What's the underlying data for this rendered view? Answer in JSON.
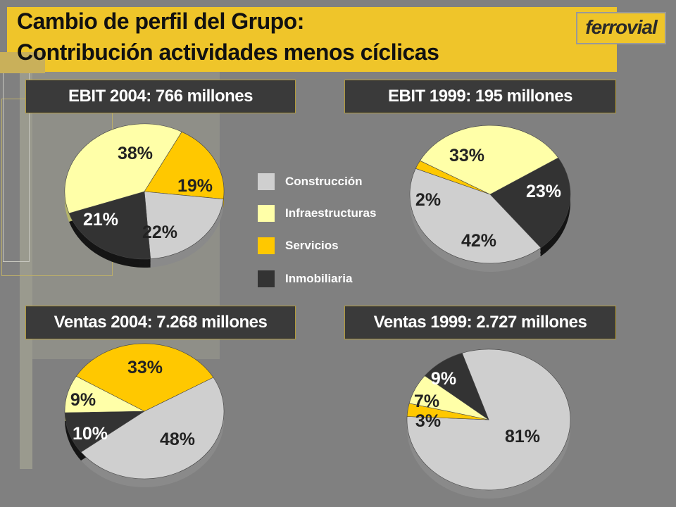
{
  "title": {
    "line1": "Cambio de perfil del Grupo:",
    "line2": "Contribución actividades menos cíclicas"
  },
  "logo_text": "ferrovial",
  "colors": {
    "background": "#808080",
    "accent": "#efc52a",
    "header_bg": "#3a3a3a"
  },
  "legend": [
    {
      "label": "Construcción",
      "color": "#cfcfcf"
    },
    {
      "label": "Infraestructuras",
      "color": "#ffffa8"
    },
    {
      "label": "Servicios",
      "color": "#ffc800"
    },
    {
      "label": "Inmobiliaria",
      "color": "#333333"
    }
  ],
  "chart_data": [
    {
      "type": "pie",
      "title": "EBIT 2004: 766 millones",
      "categories": [
        "Construcción",
        "Infraestructuras",
        "Servicios",
        "Inmobiliaria"
      ],
      "values": [
        22,
        38,
        19,
        21
      ],
      "labels": [
        "22%",
        "38%",
        "19%",
        "21%"
      ]
    },
    {
      "type": "pie",
      "title": "EBIT 1999: 195 millones",
      "categories": [
        "Construcción",
        "Infraestructuras",
        "Servicios",
        "Inmobiliaria"
      ],
      "values": [
        42,
        33,
        2,
        23
      ],
      "labels": [
        "42%",
        "33%",
        "2%",
        "23%"
      ]
    },
    {
      "type": "pie",
      "title": "Ventas 2004: 7.268 millones",
      "categories": [
        "Construcción",
        "Infraestructuras",
        "Servicios",
        "Inmobiliaria"
      ],
      "values": [
        48,
        9,
        33,
        10
      ],
      "labels": [
        "48%",
        "9%",
        "33%",
        "10%"
      ]
    },
    {
      "type": "pie",
      "title": "Ventas 1999: 2.727 millones",
      "categories": [
        "Construcción",
        "Infraestructuras",
        "Servicios",
        "Inmobiliaria"
      ],
      "values": [
        81,
        7,
        3,
        9
      ],
      "labels": [
        "81%",
        "7%",
        "3%",
        "9%"
      ]
    }
  ]
}
